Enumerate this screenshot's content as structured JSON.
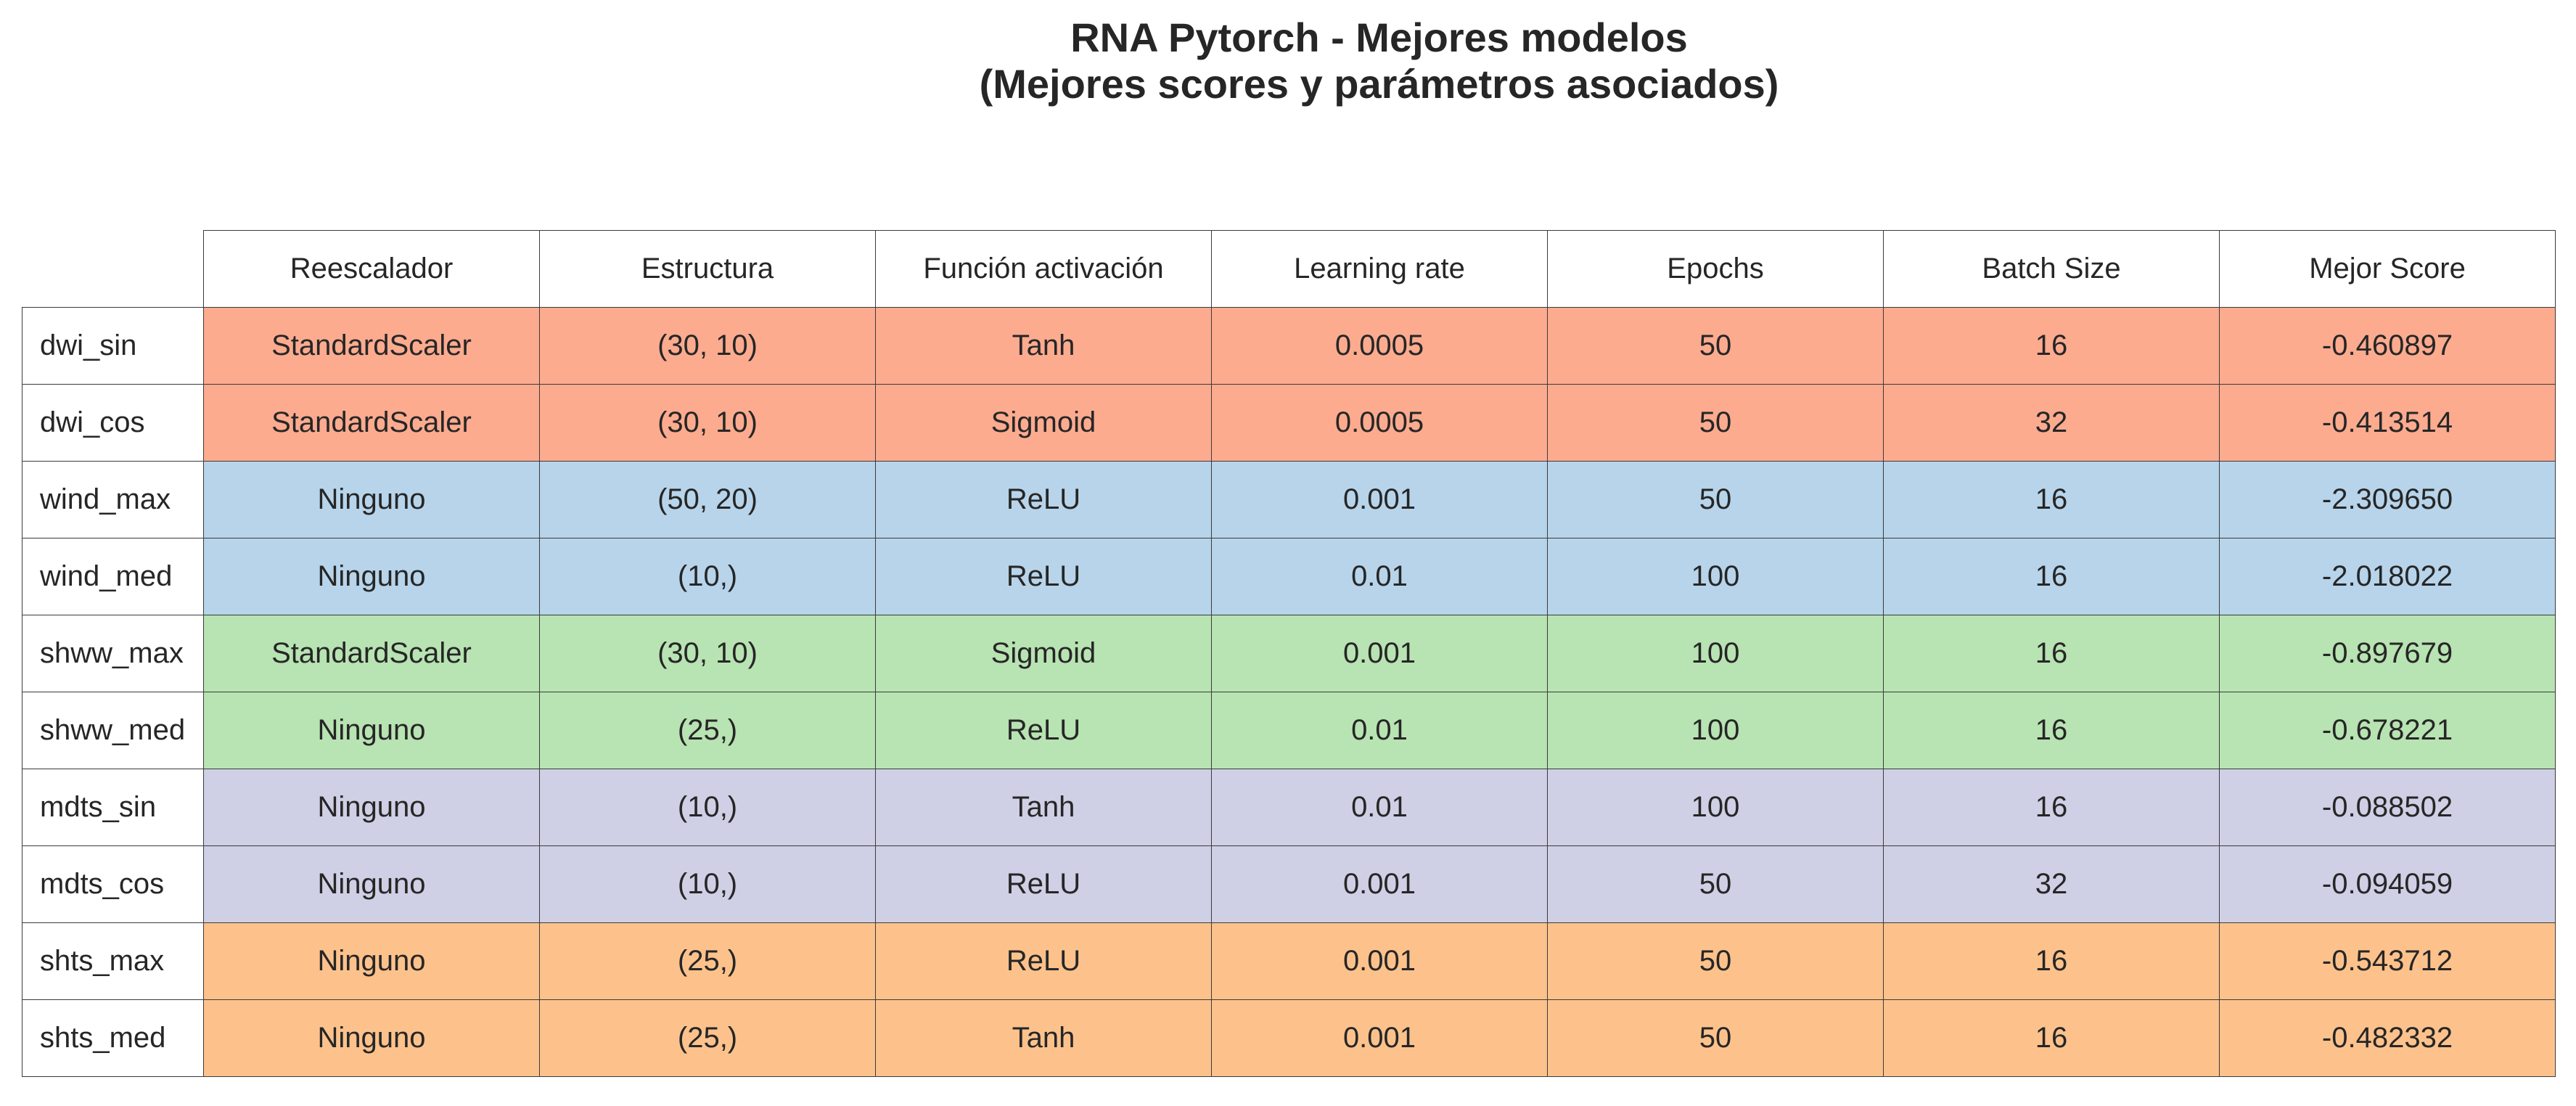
{
  "chart_data": {
    "type": "table",
    "title_lines": [
      "RNA Pytorch - Mejores modelos",
      "(Mejores scores y parámetros asociados)"
    ],
    "columns": [
      "Reescalador",
      "Estructura",
      "Función activación",
      "Learning rate",
      "Epochs",
      "Batch Size",
      "Mejor Score"
    ],
    "group_colors": {
      "dwi": "#fcab8f",
      "wind": "#b7d4ea",
      "shww": "#b8e3b2",
      "mdts": "#cfcfe5",
      "shts": "#fdc28c"
    },
    "rows": [
      {
        "label": "dwi_sin",
        "group": "dwi",
        "values": [
          "StandardScaler",
          "(30, 10)",
          "Tanh",
          "0.0005",
          "50",
          "16",
          "-0.460897"
        ]
      },
      {
        "label": "dwi_cos",
        "group": "dwi",
        "values": [
          "StandardScaler",
          "(30, 10)",
          "Sigmoid",
          "0.0005",
          "50",
          "32",
          "-0.413514"
        ]
      },
      {
        "label": "wind_max",
        "group": "wind",
        "values": [
          "Ninguno",
          "(50, 20)",
          "ReLU",
          "0.001",
          "50",
          "16",
          "-2.309650"
        ]
      },
      {
        "label": "wind_med",
        "group": "wind",
        "values": [
          "Ninguno",
          "(10,)",
          "ReLU",
          "0.01",
          "100",
          "16",
          "-2.018022"
        ]
      },
      {
        "label": "shww_max",
        "group": "shww",
        "values": [
          "StandardScaler",
          "(30, 10)",
          "Sigmoid",
          "0.001",
          "100",
          "16",
          "-0.897679"
        ]
      },
      {
        "label": "shww_med",
        "group": "shww",
        "values": [
          "Ninguno",
          "(25,)",
          "ReLU",
          "0.01",
          "100",
          "16",
          "-0.678221"
        ]
      },
      {
        "label": "mdts_sin",
        "group": "mdts",
        "values": [
          "Ninguno",
          "(10,)",
          "Tanh",
          "0.01",
          "100",
          "16",
          "-0.088502"
        ]
      },
      {
        "label": "mdts_cos",
        "group": "mdts",
        "values": [
          "Ninguno",
          "(10,)",
          "ReLU",
          "0.001",
          "50",
          "32",
          "-0.094059"
        ]
      },
      {
        "label": "shts_max",
        "group": "shts",
        "values": [
          "Ninguno",
          "(25,)",
          "ReLU",
          "0.001",
          "50",
          "16",
          "-0.543712"
        ]
      },
      {
        "label": "shts_med",
        "group": "shts",
        "values": [
          "Ninguno",
          "(25,)",
          "Tanh",
          "0.001",
          "50",
          "16",
          "-0.482332"
        ]
      }
    ]
  }
}
